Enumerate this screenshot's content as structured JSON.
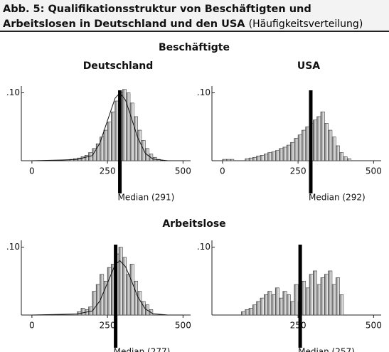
{
  "title": "Abb. 5: Qualifikationsstruktur von Beschäftigten und Arbeitslosen in Deutschland und den USA",
  "subtitle": "(Häufigkeitsverteilung)",
  "sections": [
    "Beschäftigte",
    "Arbeitslose"
  ],
  "chart_data": [
    {
      "type": "histogram",
      "title": "Deutschland",
      "color": "#7a7a7a",
      "bins": [
        125,
        137.5,
        150,
        162.5,
        175,
        187.5,
        200,
        212.5,
        225,
        237.5,
        250,
        262.5,
        275,
        287.5,
        300,
        312.5,
        325,
        337.5,
        350,
        362.5,
        375,
        387.5,
        400,
        412.5,
        425
      ],
      "values": [
        0.002,
        0.003,
        0.004,
        0.006,
        0.008,
        0.012,
        0.018,
        0.025,
        0.035,
        0.045,
        0.057,
        0.072,
        0.088,
        0.1,
        0.105,
        0.1,
        0.085,
        0.065,
        0.045,
        0.03,
        0.018,
        0.01,
        0.005,
        0.002
      ],
      "fit": {
        "x": [
          0,
          100,
          150,
          200,
          225,
          250,
          275,
          291,
          310,
          330,
          350,
          375,
          400,
          450,
          500
        ],
        "values": [
          0,
          0.001,
          0.002,
          0.0075,
          0.026,
          0.059,
          0.092,
          0.1,
          0.089,
          0.062,
          0.034,
          0.011,
          0.0025,
          0,
          0
        ]
      },
      "median": {
        "value": 291,
        "label": "Median (291)"
      },
      "xlim": [
        -35,
        525
      ],
      "ylim": [
        0,
        0.11
      ],
      "xticks": [
        0,
        250,
        500
      ],
      "yticks": [
        {
          "value": 0.1,
          "label": ".10"
        }
      ]
    },
    {
      "type": "histogram",
      "title": "USA",
      "color": "#7a7a7a",
      "bins": [
        0,
        12.5,
        25,
        37.5,
        50,
        62.5,
        75,
        87.5,
        100,
        112.5,
        125,
        137.5,
        150,
        162.5,
        175,
        187.5,
        200,
        212.5,
        225,
        237.5,
        250,
        262.5,
        275,
        287.5,
        300,
        312.5,
        325,
        337.5,
        350,
        362.5,
        375,
        387.5,
        400,
        412.5,
        425
      ],
      "values": [
        0.002,
        0.002,
        0.002,
        0,
        0,
        0,
        0.003,
        0.004,
        0.005,
        0.007,
        0.008,
        0.01,
        0.012,
        0.013,
        0.015,
        0.018,
        0.02,
        0.023,
        0.027,
        0.033,
        0.038,
        0.045,
        0.05,
        0.055,
        0.06,
        0.065,
        0.072,
        0.055,
        0.045,
        0.035,
        0.022,
        0.012,
        0.006,
        0.003
      ],
      "median": {
        "value": 292,
        "label": "Median (292)"
      },
      "xlim": [
        -35,
        525
      ],
      "ylim": [
        0,
        0.11
      ],
      "xticks": [
        0,
        250,
        500
      ],
      "yticks": [
        {
          "value": 0.1,
          "label": ".10"
        }
      ]
    },
    {
      "type": "histogram",
      "color": "#7a7a7a",
      "bins": [
        150,
        162.5,
        175,
        187.5,
        200,
        212.5,
        225,
        237.5,
        250,
        262.5,
        275,
        287.5,
        300,
        312.5,
        325,
        337.5,
        350,
        362.5,
        375,
        387.5,
        400
      ],
      "values": [
        0.005,
        0.01,
        0.008,
        0.012,
        0.035,
        0.045,
        0.06,
        0.05,
        0.07,
        0.075,
        0.09,
        0.1,
        0.085,
        0.06,
        0.075,
        0.05,
        0.035,
        0.02,
        0.015,
        0.008
      ],
      "fit": {
        "x": [
          0,
          100,
          150,
          200,
          225,
          250,
          275,
          291,
          310,
          330,
          350,
          375,
          400,
          450,
          500
        ],
        "values": [
          0,
          0.001,
          0.0016,
          0.006,
          0.021,
          0.047,
          0.074,
          0.08,
          0.071,
          0.05,
          0.027,
          0.009,
          0.002,
          0,
          0
        ]
      },
      "median": {
        "value": 277,
        "label": "Median (277)"
      },
      "xlim": [
        -35,
        525
      ],
      "ylim": [
        0,
        0.11
      ],
      "xticks": [
        0,
        250,
        500
      ],
      "yticks": [
        {
          "value": 0.1,
          "label": ".10"
        }
      ]
    },
    {
      "type": "histogram",
      "color": "#7a7a7a",
      "bins": [
        62.5,
        75,
        87.5,
        100,
        112.5,
        125,
        137.5,
        150,
        162.5,
        175,
        187.5,
        200,
        212.5,
        225,
        237.5,
        250,
        262.5,
        275,
        287.5,
        300,
        312.5,
        325,
        337.5,
        350,
        362.5,
        375,
        387.5,
        400
      ],
      "values": [
        0.005,
        0.008,
        0.01,
        0.015,
        0.02,
        0.025,
        0.03,
        0.035,
        0.03,
        0.04,
        0.025,
        0.035,
        0.03,
        0.02,
        0.045,
        0.02,
        0.05,
        0.04,
        0.06,
        0.065,
        0.045,
        0.055,
        0.06,
        0.065,
        0.045,
        0.055,
        0.03
      ],
      "median": {
        "value": 257,
        "label": "Median (257)"
      },
      "xlim": [
        -35,
        525
      ],
      "ylim": [
        0,
        0.11
      ],
      "xticks": [
        250,
        500
      ],
      "yticks": [
        {
          "value": 0.1,
          "label": ".10"
        }
      ]
    }
  ]
}
